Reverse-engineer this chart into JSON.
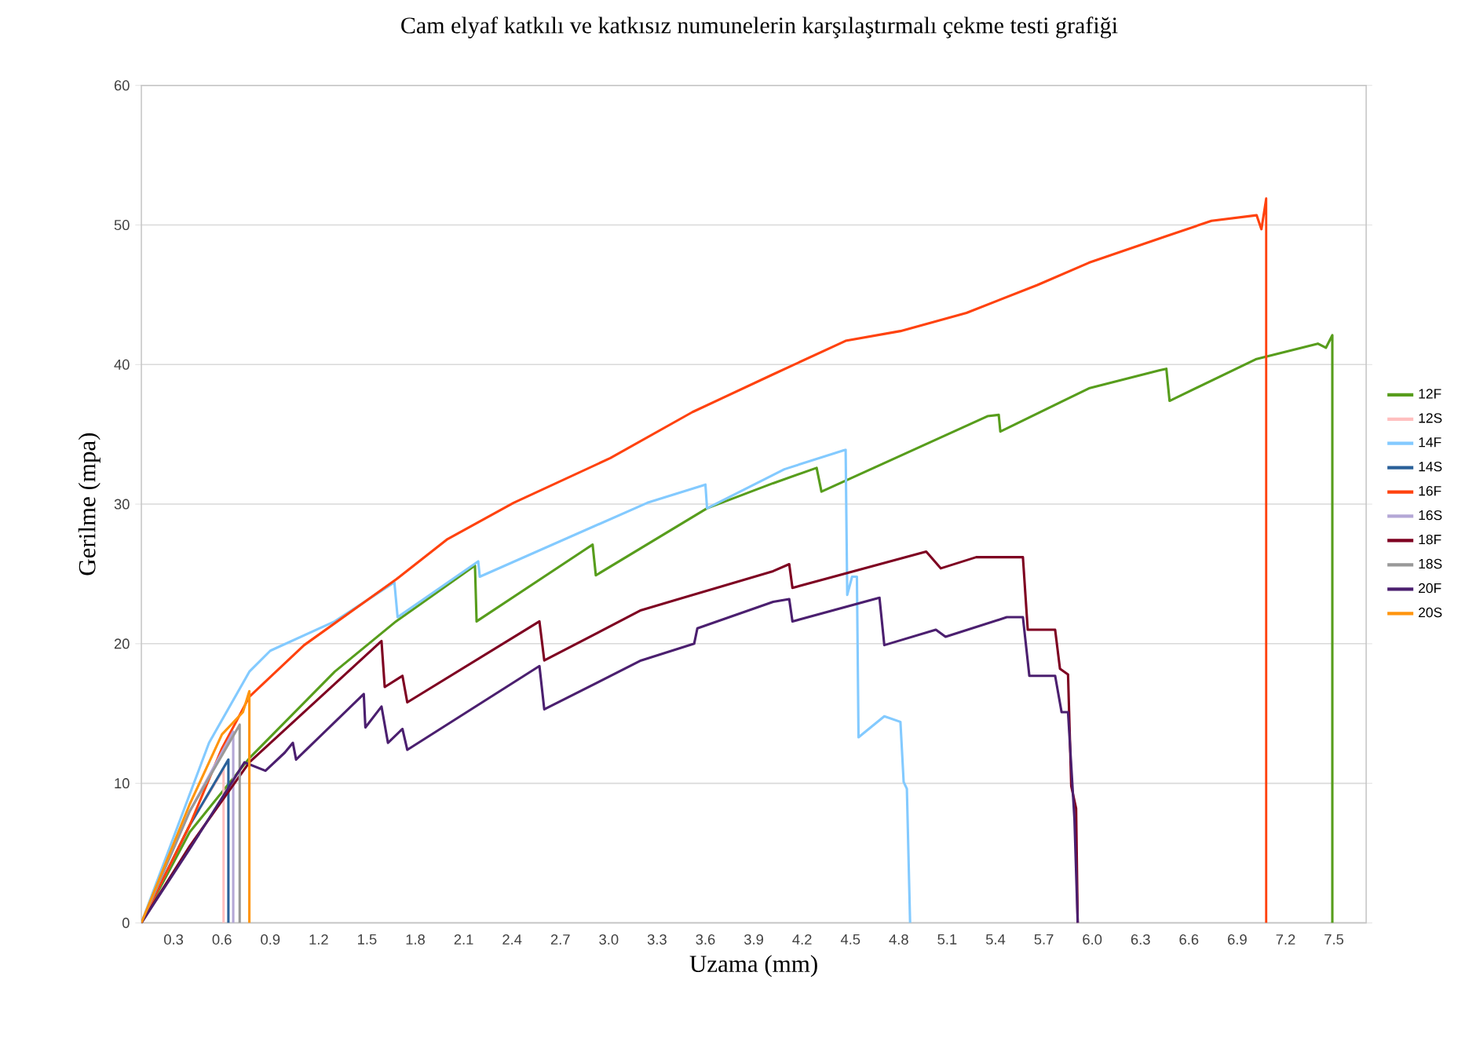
{
  "chart_data": {
    "type": "line",
    "title": "Cam elyaf katkılı ve katkısız numunelerin karşılaştırmalı çekme testi grafiği",
    "xlabel": "Uzama (mm)",
    "ylabel": "Gerilme (mpa)",
    "xlim": [
      0.1,
      7.7
    ],
    "ylim": [
      0,
      60
    ],
    "xticks": [
      0.3,
      0.6,
      0.9,
      1.2,
      1.5,
      1.8,
      2.1,
      2.4,
      2.7,
      {
        "value": 3.0,
        "label": "3.0"
      },
      3.3,
      3.6,
      3.9,
      4.2,
      4.5,
      4.8,
      5.1,
      5.4,
      5.7,
      {
        "value": 6.0,
        "label": "6.0"
      },
      6.3,
      6.6,
      6.9,
      7.2,
      7.5
    ],
    "yticks": [
      0,
      10,
      20,
      30,
      40,
      50,
      60
    ],
    "grid": "y",
    "legend": "right",
    "marker": "none",
    "line_style": "solid",
    "series": [
      {
        "name": "12F",
        "color": "#579d1c",
        "x": [
          0.1,
          0.4,
          0.77,
          1.3,
          1.68,
          2.17,
          2.18,
          2.86,
          2.9,
          2.92,
          3.61,
          4.02,
          4.29,
          4.32,
          5.35,
          5.42,
          5.43,
          5.98,
          6.42,
          6.46,
          6.48,
          7.02,
          7.4,
          7.45,
          7.49,
          7.49
        ],
        "values": [
          0,
          6.5,
          11.8,
          18.0,
          21.6,
          25.6,
          21.6,
          26.8,
          27.1,
          24.9,
          29.7,
          31.5,
          32.6,
          30.9,
          36.3,
          36.4,
          35.2,
          38.3,
          39.6,
          39.7,
          37.4,
          40.4,
          41.5,
          41.2,
          42.1,
          0
        ]
      },
      {
        "name": "12S",
        "color": "#ffbfbf",
        "x": [
          0.1,
          0.4,
          0.61,
          0.61
        ],
        "values": [
          0,
          7,
          11,
          0
        ]
      },
      {
        "name": "14F",
        "color": "#83caff",
        "x": [
          0.1,
          0.52,
          0.77,
          0.9,
          1.3,
          1.67,
          1.69,
          2.19,
          2.2,
          3.24,
          3.6,
          3.61,
          4.09,
          4.47,
          4.48,
          4.51,
          4.54,
          4.55,
          4.71,
          4.81,
          4.83,
          4.85,
          4.87
        ],
        "values": [
          0,
          12.9,
          18.0,
          19.5,
          21.6,
          24.4,
          21.9,
          25.9,
          24.8,
          30.1,
          31.4,
          29.7,
          32.5,
          33.9,
          23.5,
          24.8,
          24.8,
          13.3,
          14.8,
          14.4,
          10.1,
          9.6,
          0
        ]
      },
      {
        "name": "14S",
        "color": "#2a6099",
        "x": [
          0.1,
          0.4,
          0.64,
          0.64
        ],
        "values": [
          0,
          7,
          11.7,
          0
        ]
      },
      {
        "name": "16F",
        "color": "#ff420e",
        "x": [
          0.1,
          0.4,
          0.6,
          0.77,
          1.11,
          1.68,
          2.0,
          2.41,
          3.01,
          3.52,
          4.02,
          4.47,
          4.81,
          5.22,
          5.66,
          5.98,
          6.46,
          6.74,
          7.02,
          7.05,
          7.08,
          7.08
        ],
        "values": [
          0,
          7,
          12.5,
          16.2,
          19.9,
          24.6,
          27.5,
          30.1,
          33.3,
          36.6,
          39.3,
          41.7,
          42.4,
          43.7,
          45.7,
          47.3,
          49.2,
          50.3,
          50.7,
          49.7,
          51.9,
          0
        ]
      },
      {
        "name": "16S",
        "color": "#b4a7d6",
        "x": [
          0.1,
          0.4,
          0.67,
          0.67
        ],
        "values": [
          0,
          8,
          13.7,
          0
        ]
      },
      {
        "name": "18F",
        "color": "#7e0021",
        "x": [
          0.1,
          0.4,
          0.77,
          1.59,
          1.61,
          1.72,
          1.75,
          2.57,
          2.6,
          3.2,
          4.02,
          4.12,
          4.14,
          4.97,
          5.06,
          5.28,
          5.57,
          5.6,
          5.77,
          5.8,
          5.85,
          5.87,
          5.9,
          5.91
        ],
        "values": [
          0,
          5.5,
          11.5,
          20.2,
          16.9,
          17.7,
          15.8,
          21.6,
          18.8,
          22.4,
          25.2,
          25.7,
          24.0,
          26.6,
          25.4,
          26.2,
          26.2,
          21.0,
          21.0,
          18.2,
          17.8,
          9.8,
          8.2,
          0
        ]
      },
      {
        "name": "18S",
        "color": "#999999",
        "x": [
          0.1,
          0.4,
          0.71,
          0.71
        ],
        "values": [
          0,
          8,
          14.2,
          0
        ]
      },
      {
        "name": "20F",
        "color": "#4b1f6f",
        "x": [
          0.1,
          0.4,
          0.74,
          0.87,
          0.99,
          1.04,
          1.06,
          1.48,
          1.49,
          1.59,
          1.63,
          1.72,
          1.75,
          2.57,
          2.6,
          3.2,
          3.53,
          3.55,
          4.02,
          4.12,
          4.14,
          4.68,
          4.71,
          5.03,
          5.09,
          5.47,
          5.57,
          5.61,
          5.77,
          5.81,
          5.85,
          5.89,
          5.91
        ],
        "values": [
          0,
          5.3,
          11.5,
          10.9,
          12.2,
          12.9,
          11.7,
          16.4,
          14.0,
          15.5,
          12.9,
          13.9,
          12.4,
          18.4,
          15.3,
          18.8,
          20.0,
          21.1,
          23.0,
          23.2,
          21.6,
          23.3,
          19.9,
          21.0,
          20.5,
          21.9,
          21.9,
          17.7,
          17.7,
          15.1,
          15.1,
          7.4,
          0
        ]
      },
      {
        "name": "20S",
        "color": "#ff950e",
        "x": [
          0.1,
          0.4,
          0.6,
          0.73,
          0.77,
          0.77
        ],
        "values": [
          0,
          8.5,
          13.5,
          15.1,
          16.6,
          0
        ]
      }
    ]
  }
}
